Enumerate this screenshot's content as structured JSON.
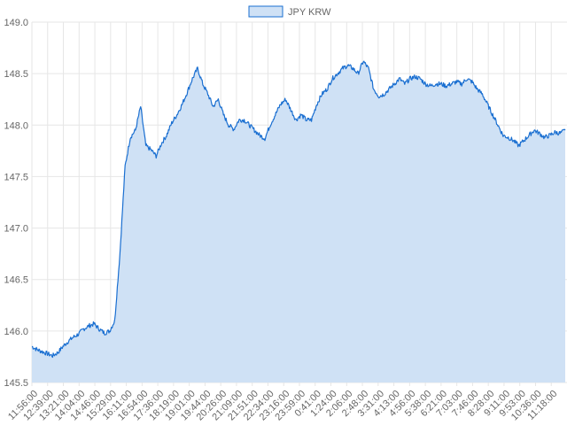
{
  "chart_data": {
    "type": "area",
    "series": [
      {
        "name": "JPY KRW",
        "color": "#1a6fd1",
        "fill": "#cfe1f5",
        "values": [
          145.85,
          145.82,
          145.8,
          145.78,
          145.76,
          145.79,
          145.85,
          145.9,
          145.94,
          145.97,
          146.02,
          146.05,
          146.07,
          146.02,
          145.98,
          146.0,
          146.1,
          146.75,
          147.6,
          147.88,
          147.95,
          148.18,
          147.8,
          147.76,
          147.7,
          147.82,
          147.9,
          148.02,
          148.1,
          148.2,
          148.32,
          148.45,
          148.55,
          148.4,
          148.3,
          148.18,
          148.25,
          148.1,
          148.0,
          147.96,
          148.05,
          148.05,
          148.0,
          147.95,
          147.9,
          147.87,
          148.0,
          148.1,
          148.2,
          148.25,
          148.15,
          148.05,
          148.1,
          148.05,
          148.05,
          148.2,
          148.3,
          148.35,
          148.45,
          148.5,
          148.55,
          148.58,
          148.55,
          148.5,
          148.62,
          148.55,
          148.35,
          148.28,
          148.3,
          148.35,
          148.4,
          148.45,
          148.4,
          148.45,
          148.47,
          148.45,
          148.4,
          148.38,
          148.4,
          148.4,
          148.38,
          148.4,
          148.42,
          148.4,
          148.45,
          148.42,
          148.35,
          148.3,
          148.2,
          148.1,
          148.0,
          147.9,
          147.88,
          147.85,
          147.8,
          147.85,
          147.9,
          147.95,
          147.92,
          147.88,
          147.9,
          147.93,
          147.92,
          147.95
        ]
      }
    ],
    "x_tick_labels": [
      "11:56:00",
      "12:39:00",
      "13:21:00",
      "14:04:00",
      "14:46:00",
      "15:29:00",
      "16:11:00",
      "16:54:00",
      "17:36:00",
      "18:19:00",
      "19:01:00",
      "19:44:00",
      "20:26:00",
      "21:09:00",
      "21:51:00",
      "22:34:00",
      "23:16:00",
      "23:59:00",
      "0:41:00",
      "1:24:00",
      "2:06:00",
      "2:48:00",
      "3:31:00",
      "4:13:00",
      "4:56:00",
      "5:38:00",
      "6:21:00",
      "7:03:00",
      "7:46:00",
      "8:28:00",
      "9:11:00",
      "9:53:00",
      "10:36:00",
      "11:18:00"
    ],
    "y_ticks": [
      145.5,
      146.0,
      146.5,
      147.0,
      147.5,
      148.0,
      148.5,
      149.0
    ],
    "ylim": [
      145.5,
      149.0
    ],
    "grid": true,
    "legend_position": "top-center"
  }
}
